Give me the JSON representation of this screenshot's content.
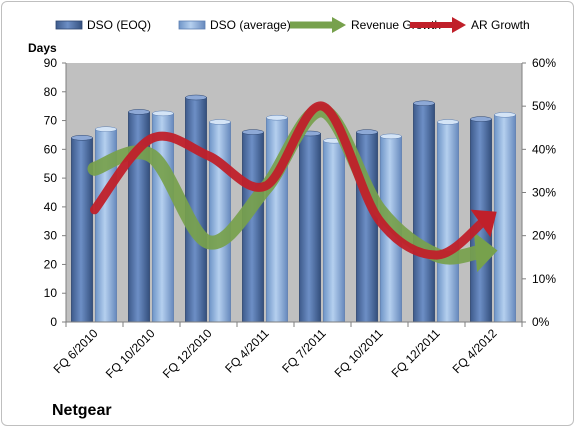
{
  "chart_data": {
    "type": "bar",
    "title": "Netgear",
    "ylabel": "Days",
    "ylim": [
      0,
      90
    ],
    "y2lim": [
      0,
      0.6
    ],
    "y_ticks": [
      "0",
      "10",
      "20",
      "30",
      "40",
      "50",
      "60",
      "70",
      "80",
      "90"
    ],
    "y2_ticks": [
      "0%",
      "10%",
      "20%",
      "30%",
      "40%",
      "50%",
      "60%"
    ],
    "categories": [
      "FQ 6/2010",
      "FQ 10/2010",
      "FQ 12/2010",
      "FQ 4/2011",
      "FQ 7/2011",
      "FQ 10/2011",
      "FQ 12/2011",
      "FQ 4/2012"
    ],
    "grid": false,
    "plot_background": "#c0c0c0",
    "legend_position": "top",
    "series": [
      {
        "name": "DSO (EOQ)",
        "kind": "bar",
        "axis": "left",
        "color": "#4f6fa3",
        "values": [
          64,
          73,
          78,
          66,
          65.5,
          66,
          76,
          70.5
        ]
      },
      {
        "name": "DSO (average)",
        "kind": "bar",
        "axis": "left",
        "color": "#8eb4e3",
        "values": [
          67,
          72.5,
          69.5,
          71,
          63,
          64.5,
          69.5,
          72
        ]
      },
      {
        "name": "Revenue Growth",
        "kind": "arrow-line",
        "axis": "right",
        "color": "#77a14c",
        "values": [
          0.355,
          0.385,
          0.185,
          0.31,
          0.49,
          0.26,
          0.155,
          0.165
        ]
      },
      {
        "name": "AR Growth",
        "kind": "arrow-line",
        "axis": "right",
        "color": "#c0202a",
        "values": [
          0.26,
          0.425,
          0.385,
          0.315,
          0.5,
          0.235,
          0.155,
          0.25
        ]
      }
    ]
  }
}
